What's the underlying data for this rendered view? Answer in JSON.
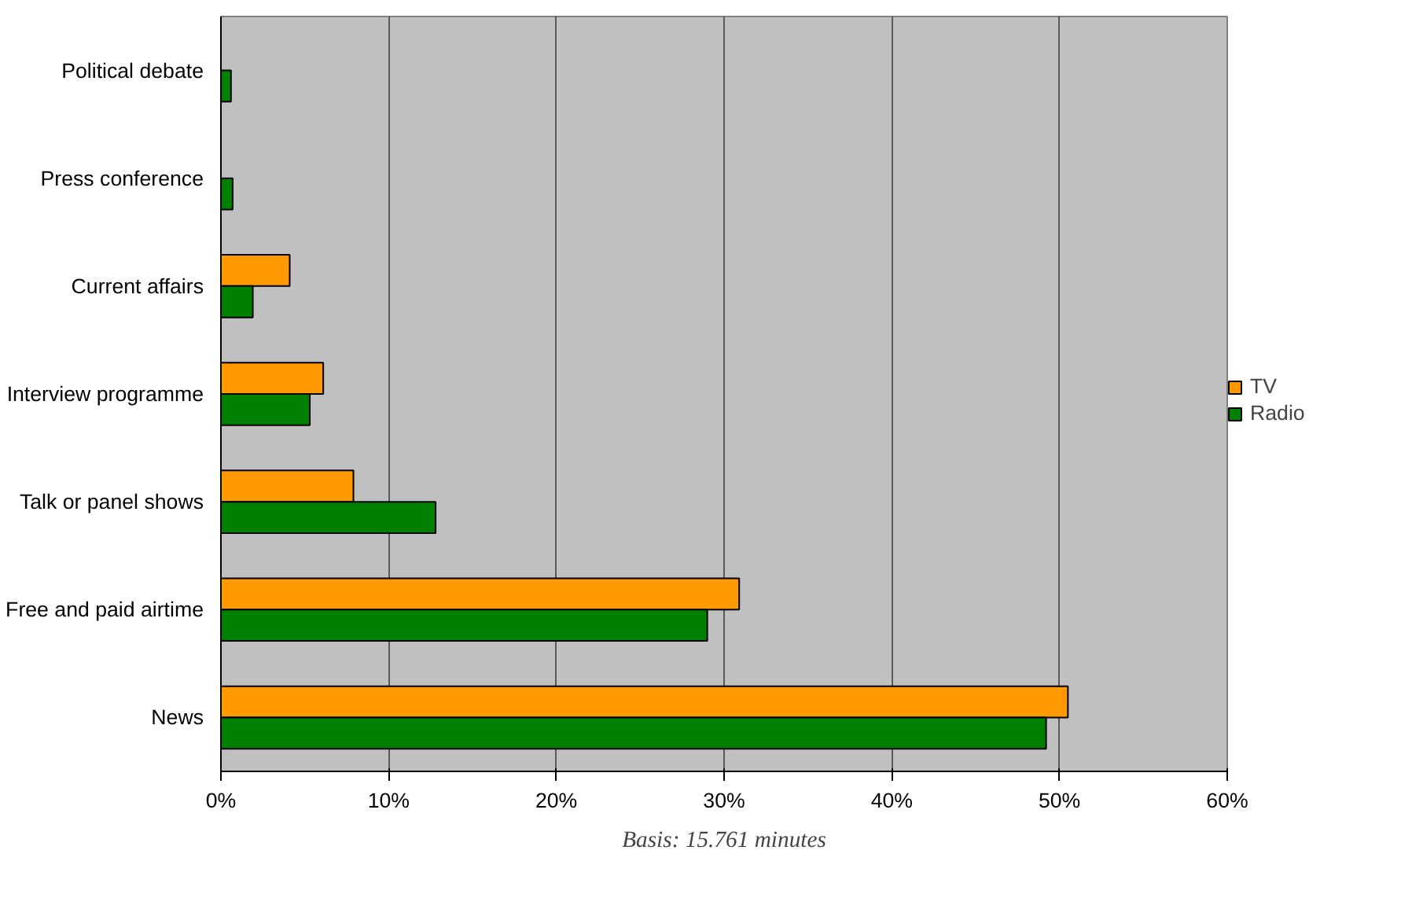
{
  "chart_data": {
    "type": "bar",
    "orientation": "horizontal",
    "categories": [
      "Political debate",
      "Press conference",
      "Current affairs",
      "Interview programme",
      "Talk or panel shows",
      "Free and paid airtime",
      "News"
    ],
    "series": [
      {
        "name": "TV",
        "color": "#ff9900",
        "values": [
          null,
          null,
          4.1,
          6.1,
          7.9,
          30.9,
          50.5
        ]
      },
      {
        "name": "Radio",
        "color": "#008000",
        "values": [
          0.6,
          0.7,
          1.9,
          5.3,
          12.8,
          29.0,
          49.2
        ]
      }
    ],
    "xlim": [
      0,
      60
    ],
    "xticks": [
      {
        "value": 0,
        "label": "0%"
      },
      {
        "value": 10,
        "label": "10%"
      },
      {
        "value": 20,
        "label": "20%"
      },
      {
        "value": 30,
        "label": "30%"
      },
      {
        "value": 40,
        "label": "40%"
      },
      {
        "value": 50,
        "label": "50%"
      },
      {
        "value": 60,
        "label": "60%"
      }
    ],
    "grid": "x",
    "legend": "right",
    "annotations": [
      "Basis: 15.761 minutes"
    ]
  }
}
